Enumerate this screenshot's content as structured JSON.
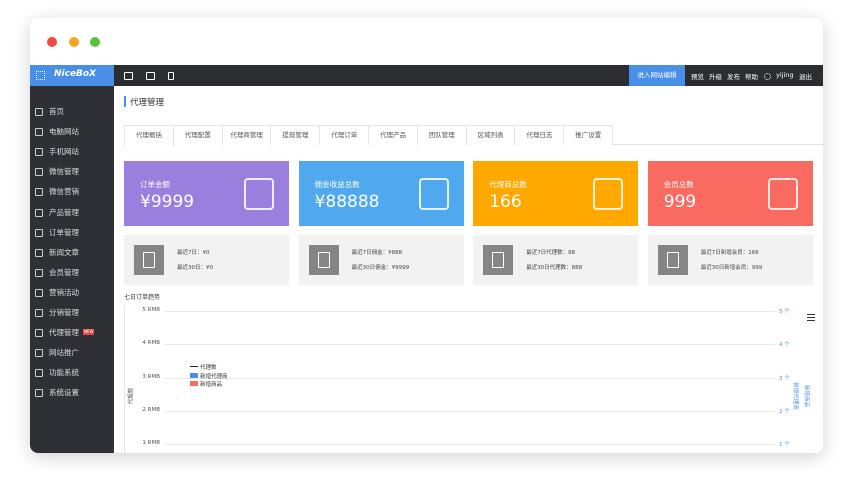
{
  "window": {
    "logo": "NiceBoX"
  },
  "topbar": {
    "edit_button": "进入网站编辑",
    "links": [
      "预览",
      "升级",
      "发布",
      "帮助"
    ],
    "user": "yijing",
    "logout": "退出"
  },
  "sidebar": {
    "items": [
      "首页",
      "电脑网站",
      "手机网站",
      "微信管理",
      "微信营销",
      "产品管理",
      "订单管理",
      "新闻文章",
      "会员管理",
      "营销活动",
      "分销管理",
      "代理管理",
      "网站推广",
      "功能系统",
      "系统设置"
    ],
    "badge": "NEW"
  },
  "page": {
    "title": "代理管理",
    "tabs": [
      "代理概括",
      "代理配置",
      "代理商管理",
      "提现管理",
      "代理订单",
      "代理产品",
      "团队管理",
      "区域列表",
      "代理日志",
      "推广设置"
    ]
  },
  "cards": [
    {
      "label": "订单金额",
      "value": "¥9999",
      "stats": [
        "最近7日：¥0",
        "最近30日：¥0"
      ]
    },
    {
      "label": "佣金收益总数",
      "value": "¥88888",
      "stats": [
        "最近7日佣金：¥888",
        "最近30日佣金：¥9999"
      ]
    },
    {
      "label": "代理商总数",
      "value": "166",
      "stats": [
        "最近7日代理数：88",
        "最近30日代理数：888"
      ]
    },
    {
      "label": "会员总数",
      "value": "999",
      "stats": [
        "最近7日新增会员：166",
        "最近30日新增会员：999"
      ]
    }
  ],
  "chart": {
    "title": "七日订单趋势",
    "left_ticks": [
      "5 RMB",
      "4 RMB",
      "3 RMB",
      "2 RMB",
      "1 RMB"
    ],
    "right_ticks": [
      "5 个",
      "4 个",
      "3 个",
      "2 个",
      "1 个"
    ],
    "y_label": "代理数",
    "legend": [
      "代理数",
      "新增代理商",
      "新增商品"
    ],
    "right_labels": [
      "新增代理商",
      "新增商品"
    ]
  }
}
